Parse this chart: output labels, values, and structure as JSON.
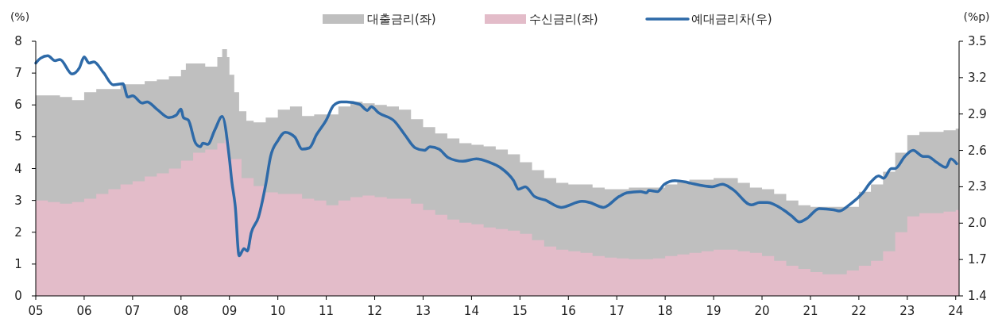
{
  "chart_data": {
    "type": "area",
    "ylabel": "(%)",
    "y2label": "(%p)",
    "legend": "top",
    "xlim": [
      2005,
      2024.07
    ],
    "xticks": [
      {
        "value": 2005,
        "label": "05"
      },
      {
        "value": 2006,
        "label": "06"
      },
      {
        "value": 2007,
        "label": "07"
      },
      {
        "value": 2008,
        "label": "08"
      },
      {
        "value": 2009,
        "label": "09"
      },
      {
        "value": 2010,
        "label": "10"
      },
      {
        "value": 2011,
        "label": "11"
      },
      {
        "value": 2012,
        "label": "12"
      },
      {
        "value": 2013,
        "label": "13"
      },
      {
        "value": 2014,
        "label": "14"
      },
      {
        "value": 2015,
        "label": "15"
      },
      {
        "value": 2016,
        "label": "16"
      },
      {
        "value": 2017,
        "label": "17"
      },
      {
        "value": 2018,
        "label": "18"
      },
      {
        "value": 2019,
        "label": "19"
      },
      {
        "value": 2020,
        "label": "20"
      },
      {
        "value": 2021,
        "label": "21"
      },
      {
        "value": 2022,
        "label": "22"
      },
      {
        "value": 2023,
        "label": "23"
      },
      {
        "value": 2024,
        "label": "24"
      }
    ],
    "ylim": [
      0,
      8
    ],
    "yticks": [
      0,
      1,
      2,
      3,
      4,
      5,
      6,
      7,
      8
    ],
    "y2lim": [
      1.4,
      3.5
    ],
    "y2ticks": [
      {
        "value": 1.4,
        "label": "1.4"
      },
      {
        "value": 1.7,
        "label": "1.7"
      },
      {
        "value": 2.0,
        "label": "2.0"
      },
      {
        "value": 2.3,
        "label": "2.3"
      },
      {
        "value": 2.6,
        "label": "2.6"
      },
      {
        "value": 2.9,
        "label": "2.9"
      },
      {
        "value": 3.2,
        "label": "3.2"
      },
      {
        "value": 3.5,
        "label": "3.5"
      }
    ],
    "series": [
      {
        "name": "대출금리(좌)",
        "color": "#bfbfbf",
        "x": [
          2005,
          2005.25,
          2005.5,
          2005.75,
          2006,
          2006.25,
          2006.5,
          2006.75,
          2007,
          2007.25,
          2007.5,
          2007.75,
          2008,
          2008.1,
          2008.5,
          2008.75,
          2008.85,
          2008.95,
          2009,
          2009.1,
          2009.2,
          2009.35,
          2009.5,
          2009.75,
          2010,
          2010.25,
          2010.5,
          2010.75,
          2011,
          2011.25,
          2011.5,
          2011.75,
          2012,
          2012.25,
          2012.5,
          2012.75,
          2013,
          2013.25,
          2013.5,
          2013.75,
          2014,
          2014.25,
          2014.5,
          2014.75,
          2015,
          2015.25,
          2015.5,
          2015.75,
          2016,
          2016.25,
          2016.5,
          2016.75,
          2017,
          2017.25,
          2017.5,
          2017.75,
          2018,
          2018.25,
          2018.5,
          2018.75,
          2019,
          2019.25,
          2019.5,
          2019.75,
          2020,
          2020.25,
          2020.5,
          2020.75,
          2021,
          2021.25,
          2021.5,
          2021.75,
          2022,
          2022.25,
          2022.5,
          2022.75,
          2023,
          2023.25,
          2023.5,
          2023.75,
          2024,
          2024.07
        ],
        "values": [
          6.3,
          6.3,
          6.25,
          6.15,
          6.4,
          6.5,
          6.5,
          6.65,
          6.65,
          6.75,
          6.8,
          6.9,
          7.1,
          7.3,
          7.2,
          7.5,
          7.75,
          7.5,
          6.95,
          6.4,
          5.8,
          5.5,
          5.45,
          5.6,
          5.85,
          5.95,
          5.65,
          5.7,
          5.7,
          5.95,
          6.1,
          6.05,
          6.0,
          5.95,
          5.85,
          5.55,
          5.3,
          5.1,
          4.95,
          4.8,
          4.75,
          4.7,
          4.6,
          4.45,
          4.2,
          3.95,
          3.7,
          3.55,
          3.5,
          3.5,
          3.4,
          3.35,
          3.35,
          3.4,
          3.4,
          3.4,
          3.5,
          3.6,
          3.65,
          3.65,
          3.7,
          3.7,
          3.55,
          3.4,
          3.35,
          3.2,
          3.0,
          2.85,
          2.8,
          2.8,
          2.8,
          2.8,
          3.27,
          3.5,
          3.9,
          4.5,
          5.05,
          5.15,
          5.15,
          5.2,
          5.25,
          5.25
        ]
      },
      {
        "name": "수신금리(좌)",
        "color": "#e3bcc9",
        "x": [
          2005,
          2005.25,
          2005.5,
          2005.75,
          2006,
          2006.25,
          2006.5,
          2006.75,
          2007,
          2007.25,
          2007.5,
          2007.75,
          2008,
          2008.25,
          2008.5,
          2008.75,
          2008.9,
          2009,
          2009.25,
          2009.5,
          2009.75,
          2010,
          2010.25,
          2010.5,
          2010.75,
          2011,
          2011.25,
          2011.5,
          2011.75,
          2012,
          2012.25,
          2012.5,
          2012.75,
          2013,
          2013.25,
          2013.5,
          2013.75,
          2014,
          2014.25,
          2014.5,
          2014.75,
          2015,
          2015.25,
          2015.5,
          2015.75,
          2016,
          2016.25,
          2016.5,
          2016.75,
          2017,
          2017.25,
          2017.5,
          2017.75,
          2018,
          2018.25,
          2018.5,
          2018.75,
          2019,
          2019.25,
          2019.5,
          2019.75,
          2020,
          2020.25,
          2020.5,
          2020.75,
          2021,
          2021.25,
          2021.5,
          2021.75,
          2022,
          2022.25,
          2022.5,
          2022.75,
          2023,
          2023.25,
          2023.5,
          2023.75,
          2024,
          2024.07
        ],
        "values": [
          3.0,
          2.95,
          2.9,
          2.95,
          3.05,
          3.2,
          3.35,
          3.5,
          3.6,
          3.75,
          3.85,
          4.0,
          4.25,
          4.5,
          4.6,
          4.8,
          4.9,
          4.3,
          3.7,
          3.45,
          3.25,
          3.2,
          3.2,
          3.05,
          3.0,
          2.85,
          3.0,
          3.1,
          3.15,
          3.1,
          3.05,
          3.05,
          2.9,
          2.7,
          2.55,
          2.4,
          2.3,
          2.25,
          2.15,
          2.1,
          2.05,
          1.95,
          1.75,
          1.55,
          1.45,
          1.4,
          1.35,
          1.25,
          1.2,
          1.18,
          1.15,
          1.15,
          1.18,
          1.25,
          1.3,
          1.35,
          1.4,
          1.45,
          1.45,
          1.4,
          1.35,
          1.25,
          1.1,
          0.95,
          0.85,
          0.75,
          0.68,
          0.68,
          0.8,
          0.95,
          1.1,
          1.4,
          2.0,
          2.5,
          2.6,
          2.6,
          2.65,
          2.7,
          2.7
        ]
      },
      {
        "name": "예대금리차(우)",
        "type": "line",
        "axis": "y2",
        "color": "#2e6aa8",
        "x": [
          2005,
          2005.1,
          2005.25,
          2005.4,
          2005.5,
          2005.75,
          2005.9,
          2006,
          2006.1,
          2006.2,
          2006.4,
          2006.6,
          2006.8,
          2006.9,
          2007,
          2007.2,
          2007.3,
          2007.5,
          2007.75,
          2007.9,
          2008,
          2008.05,
          2008.15,
          2008.3,
          2008.4,
          2008.45,
          2008.55,
          2008.7,
          2008.85,
          2009,
          2009.05,
          2009.12,
          2009.2,
          2009.3,
          2009.37,
          2009.45,
          2009.6,
          2009.75,
          2009.85,
          2010,
          2010.15,
          2010.35,
          2010.5,
          2010.65,
          2010.8,
          2011,
          2011.15,
          2011.31,
          2011.42,
          2011.69,
          2011.85,
          2011.93,
          2012.08,
          2012.41,
          2012.62,
          2012.84,
          2013.03,
          2013.14,
          2013.33,
          2013.52,
          2013.82,
          2014.1,
          2014.38,
          2014.59,
          2014.87,
          2014.97,
          2015.11,
          2015.3,
          2015.52,
          2015.85,
          2016.28,
          2016.44,
          2016.72,
          2017.05,
          2017.21,
          2017.49,
          2017.62,
          2017.66,
          2017.84,
          2017.98,
          2018.2,
          2018.41,
          2018.52,
          2018.97,
          2019.18,
          2019.39,
          2019.78,
          2019.95,
          2020.11,
          2020.44,
          2020.61,
          2020.77,
          2020.93,
          2021.18,
          2021.48,
          2021.59,
          2021.8,
          2022.08,
          2022.25,
          2022.41,
          2022.51,
          2022.67,
          2022.75,
          2022.95,
          2023.12,
          2023.33,
          2023.42,
          2023.61,
          2023.8,
          2023.9,
          2024.02
        ],
        "values": [
          3.32,
          3.36,
          3.38,
          3.34,
          3.35,
          3.23,
          3.28,
          3.37,
          3.32,
          3.33,
          3.24,
          3.14,
          3.15,
          3.04,
          3.05,
          2.99,
          3.0,
          2.94,
          2.87,
          2.89,
          2.94,
          2.87,
          2.85,
          2.66,
          2.63,
          2.66,
          2.65,
          2.77,
          2.88,
          2.53,
          2.34,
          2.14,
          1.73,
          1.79,
          1.77,
          1.92,
          2.05,
          2.32,
          2.55,
          2.68,
          2.75,
          2.71,
          2.61,
          2.62,
          2.73,
          2.85,
          2.97,
          3.0,
          3.0,
          2.98,
          2.93,
          2.96,
          2.91,
          2.84,
          2.73,
          2.62,
          2.6,
          2.63,
          2.61,
          2.54,
          2.51,
          2.53,
          2.5,
          2.46,
          2.35,
          2.28,
          2.3,
          2.22,
          2.19,
          2.13,
          2.18,
          2.17,
          2.13,
          2.22,
          2.25,
          2.26,
          2.25,
          2.27,
          2.26,
          2.32,
          2.35,
          2.34,
          2.33,
          2.3,
          2.32,
          2.28,
          2.15,
          2.17,
          2.17,
          2.11,
          2.06,
          2.01,
          2.04,
          2.12,
          2.11,
          2.1,
          2.15,
          2.25,
          2.34,
          2.39,
          2.37,
          2.45,
          2.45,
          2.55,
          2.6,
          2.55,
          2.55,
          2.5,
          2.46,
          2.53,
          2.49
        ]
      }
    ]
  }
}
